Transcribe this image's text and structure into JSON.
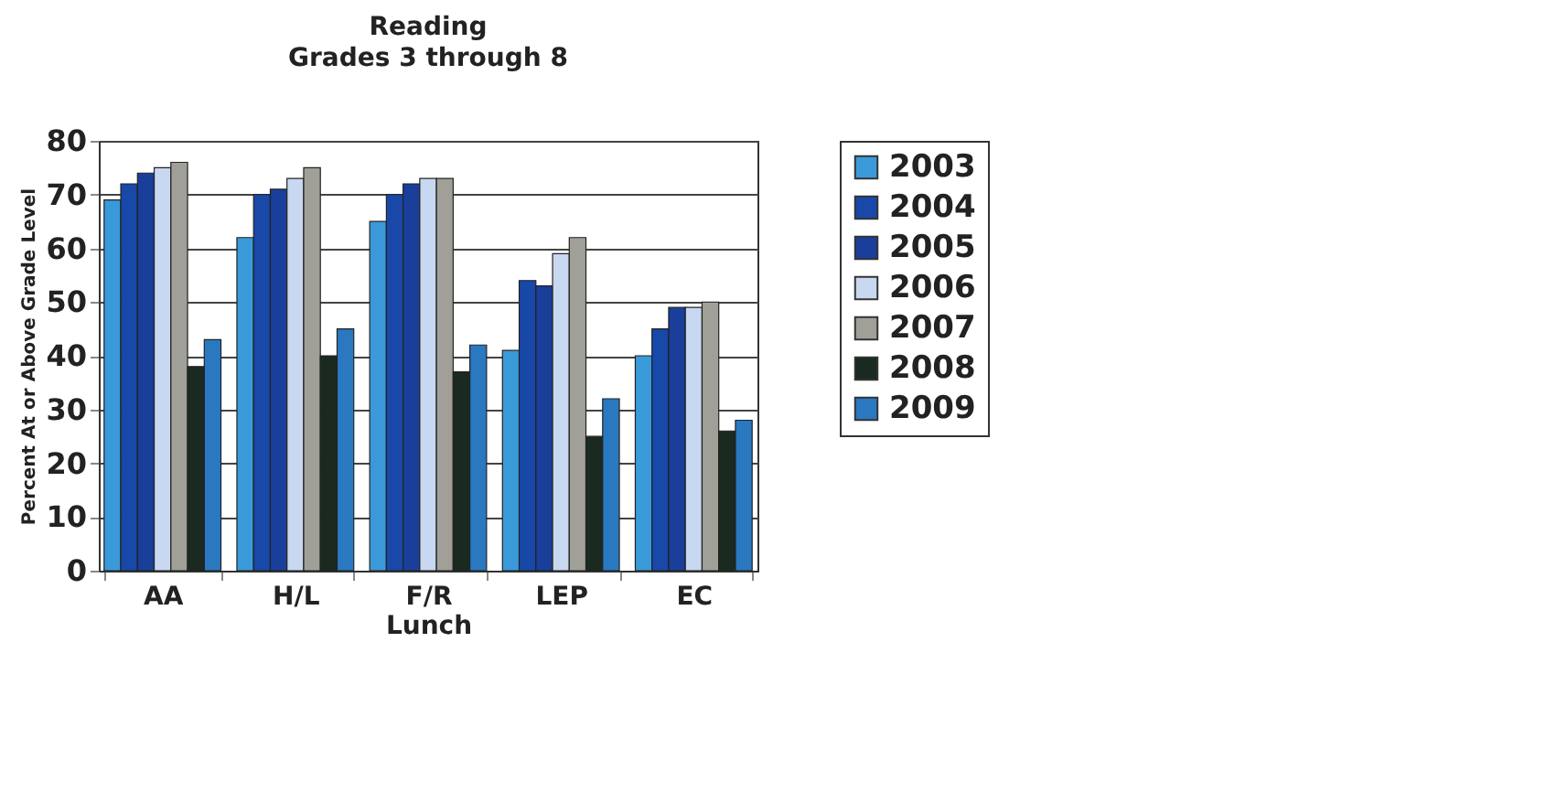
{
  "chart_data": {
    "type": "bar",
    "title": "Reading",
    "subtitle": "Grades 3 through 8",
    "ylabel": "Percent At or Above Grade Level",
    "categories": [
      "AA",
      "H/L",
      "F/R Lunch",
      "LEP",
      "EC"
    ],
    "series": [
      {
        "name": "2003",
        "color": "#3a9ad9",
        "values": [
          69,
          62,
          65,
          41,
          40
        ]
      },
      {
        "name": "2004",
        "color": "#1848a8",
        "values": [
          72,
          70,
          70,
          54,
          45
        ]
      },
      {
        "name": "2005",
        "color": "#1a3f9a",
        "values": [
          74,
          71,
          72,
          53,
          49
        ]
      },
      {
        "name": "2006",
        "color": "#c8d8f0",
        "values": [
          75,
          73,
          73,
          59,
          49
        ]
      },
      {
        "name": "2007",
        "color": "#a0a098",
        "values": [
          76,
          75,
          73,
          62,
          50
        ]
      },
      {
        "name": "2008",
        "color": "#1a2a20",
        "values": [
          38,
          40,
          37,
          25,
          26
        ]
      },
      {
        "name": "2009",
        "color": "#2a78c0",
        "values": [
          43,
          45,
          42,
          32,
          28
        ]
      }
    ],
    "ylim": [
      0,
      80
    ],
    "yticks": [
      0,
      10,
      20,
      30,
      40,
      50,
      60,
      70,
      80
    ],
    "grid": "y",
    "legend": "right"
  }
}
